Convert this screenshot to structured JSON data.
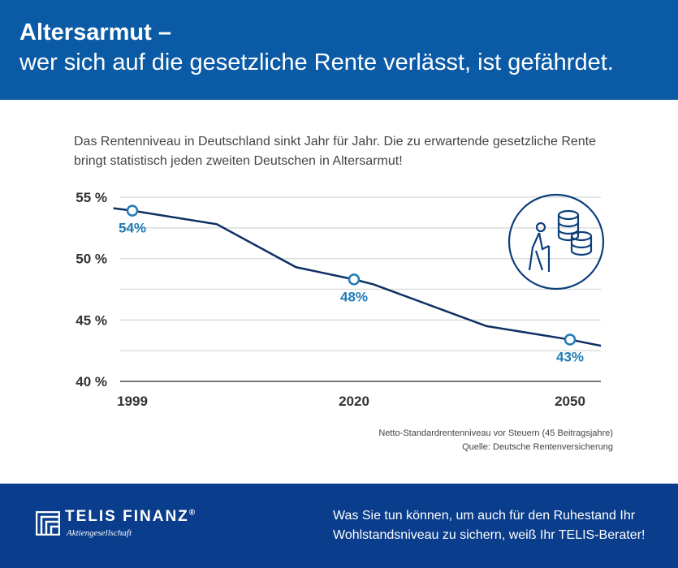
{
  "header": {
    "title": "Altersarmut –",
    "subtitle": "wer sich auf die gesetzliche Rente verlässt, ist gefährdet."
  },
  "intro": "Das Rentenniveau in Deutschland sinkt Jahr für Jahr. Die zu erwartende gesetzliche Rente bringt statistisch jeden zweiten Deutschen in Altersarmut!",
  "chart_data": {
    "type": "line",
    "ylim": [
      40,
      55
    ],
    "y_ticks": [
      {
        "value": 55,
        "label": "55 %"
      },
      {
        "value": 50,
        "label": "50 %"
      },
      {
        "value": 45,
        "label": "45 %"
      },
      {
        "value": 40,
        "label": "40 %"
      }
    ],
    "x_ticks": [
      1999,
      2020,
      2050
    ],
    "grid": true,
    "series": [
      {
        "points": [
          [
            1997.2,
            54.1
          ],
          [
            1999,
            53.9
          ],
          [
            2007,
            52.8
          ],
          [
            2014.5,
            49.3
          ],
          [
            2020,
            48.3
          ],
          [
            2022.7,
            47.9
          ],
          [
            2038.4,
            44.5
          ],
          [
            2050,
            43.4
          ],
          [
            2054.3,
            42.9
          ]
        ]
      }
    ],
    "markers": [
      {
        "x": 1999,
        "y": 53.9,
        "label": "54%"
      },
      {
        "x": 2020,
        "y": 48.3,
        "label": "48%"
      },
      {
        "x": 2050,
        "y": 43.4,
        "label": "43%"
      }
    ],
    "line_color": "#0d2f63",
    "marker_color": "#1f7ab5"
  },
  "icon": "pensioner-with-coins-icon",
  "source": {
    "note": "Netto-Standardrentenniveau vor Steuern (45 Beitragsjahre)",
    "source": "Quelle: Deutsche Rentenversicherung"
  },
  "footer": {
    "brand": "TELIS FINANZ",
    "reg": "®",
    "sub": "Aktiengesellschaft",
    "cta": "Was Sie tun können, um auch für den Ruhestand Ihr Wohlstandsniveau zu sichern, weiß Ihr TELIS-Berater!"
  }
}
